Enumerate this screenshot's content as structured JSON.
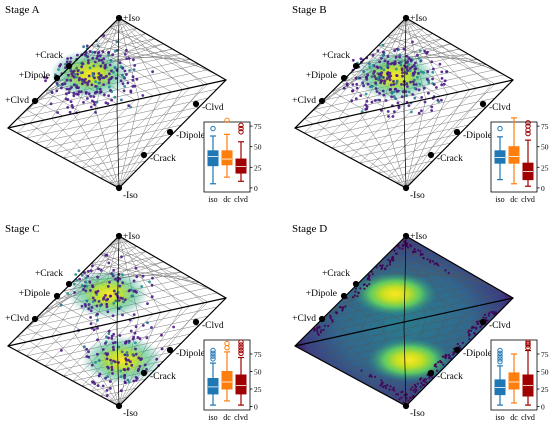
{
  "figure": {
    "lattice_labels": [
      "+Iso",
      "+Crack",
      "+Dipole",
      "+Clvd",
      "-Clvd",
      "-Dipole",
      "-Crack",
      "-Iso"
    ],
    "boxplot_categories": [
      "iso",
      "dc",
      "clvd"
    ],
    "boxplot_colors": {
      "iso": "#1f77b4",
      "dc": "#ff7f0e",
      "clvd": "#a00000"
    },
    "point_color": "#4b1a87",
    "density_colormap": [
      "#440154",
      "#3b528b",
      "#21908d",
      "#5dc963",
      "#fde725"
    ]
  },
  "chart_data": [
    {
      "type": "scatter",
      "title": "Stage A",
      "density_fill": false,
      "hotspots": [
        {
          "position": "upper-left",
          "strength": "strong"
        }
      ],
      "boxplot": {
        "type": "box",
        "categories": [
          "iso",
          "dc",
          "clvd"
        ],
        "ylim": [
          -5,
          80
        ],
        "yticks": [
          0,
          25,
          50,
          75
        ],
        "boxes": [
          {
            "name": "iso",
            "min": 5,
            "q1": 27,
            "median": 38,
            "q3": 45,
            "max": 63,
            "outliers": [
              72
            ]
          },
          {
            "name": "dc",
            "min": 13,
            "q1": 28,
            "median": 35,
            "q3": 45,
            "max": 65,
            "outliers": [
              82
            ]
          },
          {
            "name": "clvd",
            "min": 8,
            "q1": 18,
            "median": 26,
            "q3": 35,
            "max": 56,
            "outliers": [
              68,
              72,
              76
            ]
          }
        ]
      }
    },
    {
      "type": "scatter",
      "title": "Stage B",
      "density_fill": false,
      "hotspots": [
        {
          "position": "upper-center",
          "strength": "strong"
        }
      ],
      "boxplot": {
        "type": "box",
        "categories": [
          "iso",
          "dc",
          "clvd"
        ],
        "ylim": [
          -5,
          80
        ],
        "yticks": [
          0,
          25,
          50,
          75
        ],
        "boxes": [
          {
            "name": "iso",
            "min": 10,
            "q1": 30,
            "median": 37,
            "q3": 45,
            "max": 62,
            "outliers": [
              72
            ]
          },
          {
            "name": "dc",
            "min": 5,
            "q1": 30,
            "median": 38,
            "q3": 50,
            "max": 85,
            "outliers": []
          },
          {
            "name": "clvd",
            "min": 2,
            "q1": 10,
            "median": 20,
            "q3": 30,
            "max": 58,
            "outliers": [
              66,
              70,
              75,
              79
            ]
          }
        ]
      }
    },
    {
      "type": "scatter",
      "title": "Stage C",
      "density_fill": false,
      "hotspots": [
        {
          "position": "upper-center",
          "strength": "strong"
        },
        {
          "position": "lower-center",
          "strength": "strong"
        }
      ],
      "boxplot": {
        "type": "box",
        "categories": [
          "iso",
          "dc",
          "clvd"
        ],
        "ylim": [
          -5,
          95
        ],
        "yticks": [
          0,
          25,
          50,
          75
        ],
        "boxes": [
          {
            "name": "iso",
            "min": 2,
            "q1": 18,
            "median": 28,
            "q3": 40,
            "max": 62,
            "outliers": [
              68,
              72,
              76,
              80
            ]
          },
          {
            "name": "dc",
            "min": 8,
            "q1": 25,
            "median": 35,
            "q3": 50,
            "max": 78,
            "outliers": [
              84,
              90
            ]
          },
          {
            "name": "clvd",
            "min": 2,
            "q1": 18,
            "median": 30,
            "q3": 45,
            "max": 70,
            "outliers": [
              76,
              80,
              84,
              88,
              92
            ]
          }
        ]
      }
    },
    {
      "type": "scatter",
      "title": "Stage D",
      "density_fill": true,
      "hotspots": [
        {
          "position": "upper-center",
          "strength": "strong"
        },
        {
          "position": "lower-center",
          "strength": "strong"
        }
      ],
      "boxplot": {
        "type": "box",
        "categories": [
          "iso",
          "dc",
          "clvd"
        ],
        "ylim": [
          -5,
          95
        ],
        "yticks": [
          0,
          25,
          50,
          75
        ],
        "boxes": [
          {
            "name": "iso",
            "min": 2,
            "q1": 17,
            "median": 27,
            "q3": 38,
            "max": 58,
            "outliers": [
              64,
              68,
              72,
              76,
              80
            ]
          },
          {
            "name": "dc",
            "min": 5,
            "q1": 25,
            "median": 35,
            "q3": 48,
            "max": 75,
            "outliers": []
          },
          {
            "name": "clvd",
            "min": 2,
            "q1": 15,
            "median": 30,
            "q3": 45,
            "max": 80,
            "outliers": [
              84,
              88,
              90,
              92
            ]
          }
        ]
      }
    }
  ]
}
